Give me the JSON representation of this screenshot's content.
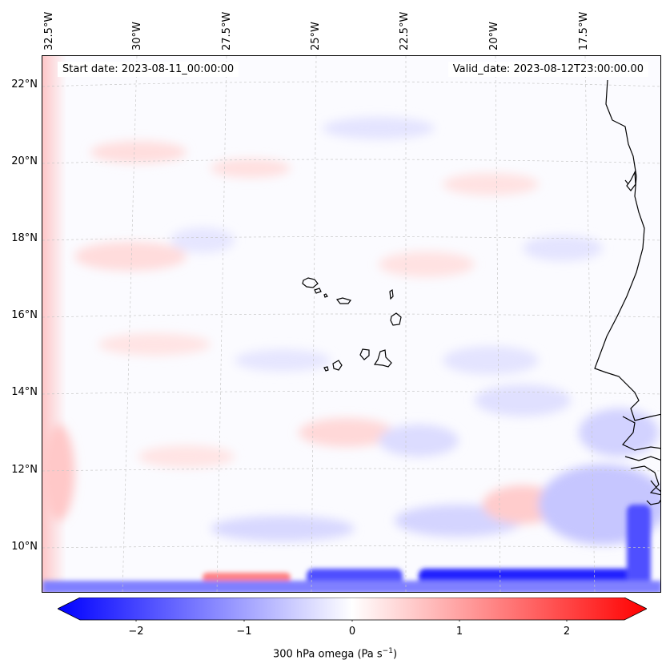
{
  "header": {
    "start_date": "Start date: 2023-08-11_00:00:00",
    "valid_date": "Valid_date: 2023-08-12T23:00:00.00"
  },
  "lon_ticks": [
    "32.5°W",
    "30°W",
    "27.5°W",
    "25°W",
    "22.5°W",
    "20°W",
    "17.5°W"
  ],
  "lat_ticks": [
    "22°N",
    "20°N",
    "18°N",
    "16°N",
    "14°N",
    "12°N",
    "10°N"
  ],
  "colorbar": {
    "ticks": [
      "−2",
      "−1",
      "0",
      "1",
      "2"
    ],
    "label": "300 hPa omega (Pa s",
    "label_sup": "−1",
    "label_end": ")",
    "min_color": "#0000ff",
    "mid_color": "#ffffff",
    "max_color": "#ff0000",
    "range": [
      -2.7,
      2.7
    ]
  },
  "colors": {
    "coastline": "#000000",
    "grid": "#c8c8c8"
  }
}
